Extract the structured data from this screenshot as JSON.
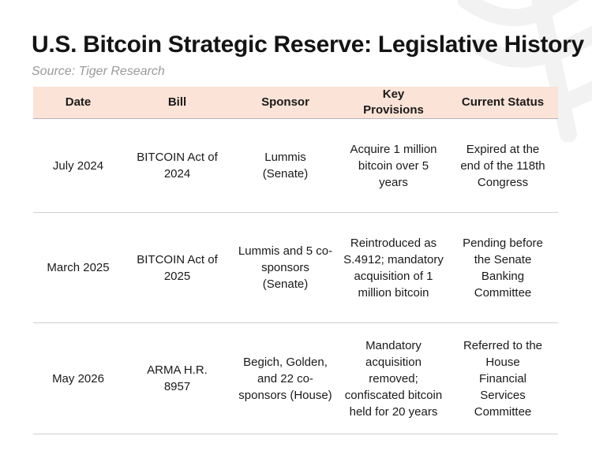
{
  "title": "U.S. Bitcoin Strategic Reserve: Legislative History",
  "source": "Source: Tiger Research",
  "table": {
    "headers": [
      "Date",
      "Bill",
      "Sponsor",
      "Key Provisions",
      "Current Status"
    ],
    "rows": [
      {
        "date": "July 2024",
        "bill": "BITCOIN Act of 2024",
        "sponsor": "Lummis (Senate)",
        "provisions": "Acquire 1 million bitcoin over 5 years",
        "status": "Expired at the end of the 118th Congress"
      },
      {
        "date": "March 2025",
        "bill": "BITCOIN Act of 2025",
        "sponsor": "Lummis and 5 co-sponsors (Senate)",
        "provisions": "Reintroduced as S.4912; mandatory acquisition of 1 million bitcoin",
        "status": "Pending before the Senate Banking Committee"
      },
      {
        "date": "May 2026",
        "bill": "ARMA H.R. 8957",
        "sponsor": "Begich, Golden, and 22 co-sponsors (House)",
        "provisions": "Mandatory acquisition removed; confiscated bitcoin held for 20 years",
        "status": "Referred to the House Financial Services Committee"
      }
    ]
  },
  "colors": {
    "header_background": "#fbe3d7",
    "watermark": "#f3f3f3"
  }
}
